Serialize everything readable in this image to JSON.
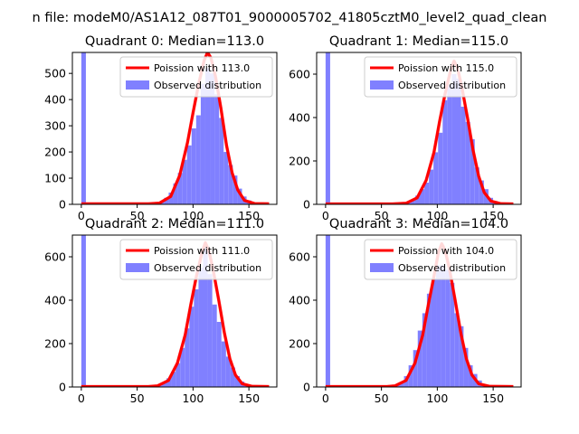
{
  "suptitle": "n file: modeM0/AS1A12_087T01_9000005702_41805cztM0_level2_quad_clean",
  "chart_data": [
    {
      "type": "bar",
      "title": "Quadrant 0: Median=113.0",
      "xlim": [
        -8,
        175
      ],
      "ylim": [
        0,
        580
      ],
      "xticks": [
        0,
        50,
        100,
        150
      ],
      "yticks": [
        0,
        100,
        200,
        300,
        400,
        500
      ],
      "bin_width": 4.1,
      "hist_x": [
        0,
        70,
        74.1,
        78.2,
        82.3,
        86.4,
        90.5,
        94.6,
        98.7,
        102.8,
        106.9,
        111,
        115.1,
        119.2,
        123.3,
        127.4,
        131.5,
        135.6,
        139.7,
        143.8,
        147.9
      ],
      "hist_y": [
        600,
        10,
        25,
        45,
        80,
        120,
        170,
        225,
        290,
        340,
        460,
        520,
        500,
        420,
        330,
        200,
        150,
        110,
        60,
        30,
        15
      ],
      "series": [
        {
          "name": "Poission with 113.0",
          "color": "#ff0000",
          "x": [
            0,
            60,
            70,
            80,
            88,
            95,
            100,
            105,
            110,
            113,
            116,
            120,
            125,
            130,
            135,
            140,
            146,
            155,
            168
          ],
          "y": [
            2,
            2,
            5,
            30,
            110,
            235,
            350,
            460,
            550,
            580,
            560,
            490,
            365,
            225,
            120,
            55,
            15,
            3,
            2
          ]
        },
        {
          "name": "Observed distribution",
          "color": "#8080ff"
        }
      ],
      "legend": "top-right"
    },
    {
      "type": "bar",
      "title": "Quadrant 1: Median=115.0",
      "xlim": [
        -8,
        175
      ],
      "ylim": [
        0,
        700
      ],
      "xticks": [
        0,
        50,
        100,
        150
      ],
      "yticks": [
        0,
        200,
        400,
        600
      ],
      "bin_width": 4.1,
      "hist_x": [
        0,
        72,
        76.1,
        80.2,
        84.3,
        88.4,
        92.5,
        96.6,
        100.7,
        104.8,
        108.9,
        113,
        117.1,
        121.2,
        125.3,
        129.4,
        133.5,
        137.6,
        141.7,
        145.8,
        149.9
      ],
      "hist_y": [
        700,
        10,
        20,
        40,
        70,
        100,
        160,
        240,
        330,
        480,
        550,
        600,
        580,
        450,
        380,
        300,
        170,
        110,
        70,
        30,
        15
      ],
      "series": [
        {
          "name": "Poission with 115.0",
          "color": "#ff0000",
          "x": [
            0,
            60,
            72,
            82,
            90,
            97,
            102,
            107,
            112,
            115,
            118,
            122,
            127,
            132,
            137,
            142,
            148,
            157,
            168
          ],
          "y": [
            2,
            2,
            5,
            30,
            110,
            240,
            380,
            510,
            620,
            660,
            630,
            540,
            400,
            250,
            130,
            55,
            15,
            3,
            2
          ]
        },
        {
          "name": "Observed distribution",
          "color": "#8080ff"
        }
      ],
      "legend": "top-right"
    },
    {
      "type": "bar",
      "title": "Quadrant 2: Median=111.0",
      "xlim": [
        -8,
        175
      ],
      "ylim": [
        0,
        700
      ],
      "xticks": [
        0,
        50,
        100,
        150
      ],
      "yticks": [
        0,
        200,
        400,
        600
      ],
      "bin_width": 4.1,
      "hist_x": [
        0,
        68,
        72.1,
        76.2,
        80.3,
        84.4,
        88.5,
        92.6,
        96.7,
        100.8,
        104.9,
        109,
        113.1,
        117.2,
        121.3,
        125.4,
        129.5,
        133.6,
        137.7,
        141.8,
        145.9
      ],
      "hist_y": [
        700,
        10,
        20,
        40,
        70,
        110,
        180,
        270,
        370,
        450,
        550,
        660,
        520,
        380,
        300,
        210,
        140,
        90,
        50,
        25,
        10
      ],
      "series": [
        {
          "name": "Poission with 111.0",
          "color": "#ff0000",
          "x": [
            0,
            60,
            68,
            78,
            86,
            93,
            98,
            103,
            108,
            111,
            114,
            118,
            123,
            128,
            133,
            138,
            144,
            153,
            168
          ],
          "y": [
            2,
            2,
            5,
            30,
            110,
            240,
            380,
            510,
            620,
            665,
            630,
            540,
            400,
            250,
            130,
            55,
            15,
            3,
            2
          ]
        },
        {
          "name": "Observed distribution",
          "color": "#8080ff"
        }
      ],
      "legend": "top-right"
    },
    {
      "type": "bar",
      "title": "Quadrant 3: Median=104.0",
      "xlim": [
        -8,
        175
      ],
      "ylim": [
        0,
        700
      ],
      "xticks": [
        0,
        50,
        100,
        150
      ],
      "yticks": [
        0,
        200,
        400,
        600
      ],
      "bin_width": 4.1,
      "hist_x": [
        0,
        62,
        66.1,
        70.2,
        74.3,
        78.4,
        82.5,
        86.6,
        90.7,
        94.8,
        98.9,
        103,
        107.1,
        111.2,
        115.3,
        119.4,
        123.5,
        127.6,
        131.7,
        135.8,
        139.9
      ],
      "hist_y": [
        700,
        10,
        20,
        50,
        100,
        170,
        260,
        340,
        430,
        500,
        560,
        560,
        540,
        480,
        340,
        280,
        180,
        100,
        60,
        30,
        12
      ],
      "series": [
        {
          "name": "Poission with 104.0",
          "color": "#ff0000",
          "x": [
            0,
            55,
            62,
            72,
            80,
            87,
            92,
            97,
            101,
            104,
            107,
            111,
            116,
            121,
            126,
            131,
            137,
            147,
            168
          ],
          "y": [
            2,
            2,
            5,
            30,
            110,
            240,
            380,
            510,
            620,
            660,
            630,
            540,
            400,
            250,
            130,
            55,
            15,
            3,
            2
          ]
        },
        {
          "name": "Observed distribution",
          "color": "#8080ff"
        }
      ],
      "legend": "top-right"
    }
  ]
}
